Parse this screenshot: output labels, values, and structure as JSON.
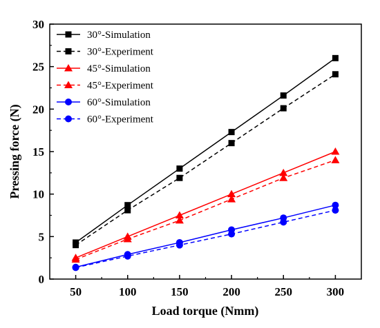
{
  "chart_data": {
    "type": "line",
    "xlabel": "Load torque (Nmm)",
    "ylabel": "Pressing force (N)",
    "xlim": [
      25,
      325
    ],
    "ylim": [
      0,
      30
    ],
    "x_ticks": [
      50,
      100,
      150,
      200,
      250,
      300
    ],
    "y_ticks": [
      0,
      5,
      10,
      15,
      20,
      25,
      30
    ],
    "grid": false,
    "legend_position": "top-left",
    "x": [
      50,
      100,
      150,
      200,
      250,
      300
    ],
    "series": [
      {
        "name": "30°-Simulation",
        "values": [
          4.3,
          8.7,
          13.0,
          17.3,
          21.6,
          26.0
        ],
        "color": "#000000",
        "dash": "solid",
        "marker": "square"
      },
      {
        "name": "30°-Experiment",
        "values": [
          4.0,
          8.1,
          11.9,
          16.0,
          20.1,
          24.1
        ],
        "color": "#000000",
        "dash": "dashed",
        "marker": "square"
      },
      {
        "name": "45°-Simulation",
        "values": [
          2.5,
          5.0,
          7.5,
          10.0,
          12.5,
          15.0
        ],
        "color": "#ff0000",
        "dash": "solid",
        "marker": "triangle"
      },
      {
        "name": "45°-Experiment",
        "values": [
          2.3,
          4.7,
          6.9,
          9.4,
          11.9,
          14.0
        ],
        "color": "#ff0000",
        "dash": "dashed",
        "marker": "triangle"
      },
      {
        "name": "60°-Simulation",
        "values": [
          1.4,
          2.9,
          4.3,
          5.8,
          7.2,
          8.7
        ],
        "color": "#0000ff",
        "dash": "solid",
        "marker": "circle"
      },
      {
        "name": "60°-Experiment",
        "values": [
          1.35,
          2.7,
          4.0,
          5.3,
          6.7,
          8.1
        ],
        "color": "#0000ff",
        "dash": "dashed",
        "marker": "circle"
      }
    ]
  }
}
